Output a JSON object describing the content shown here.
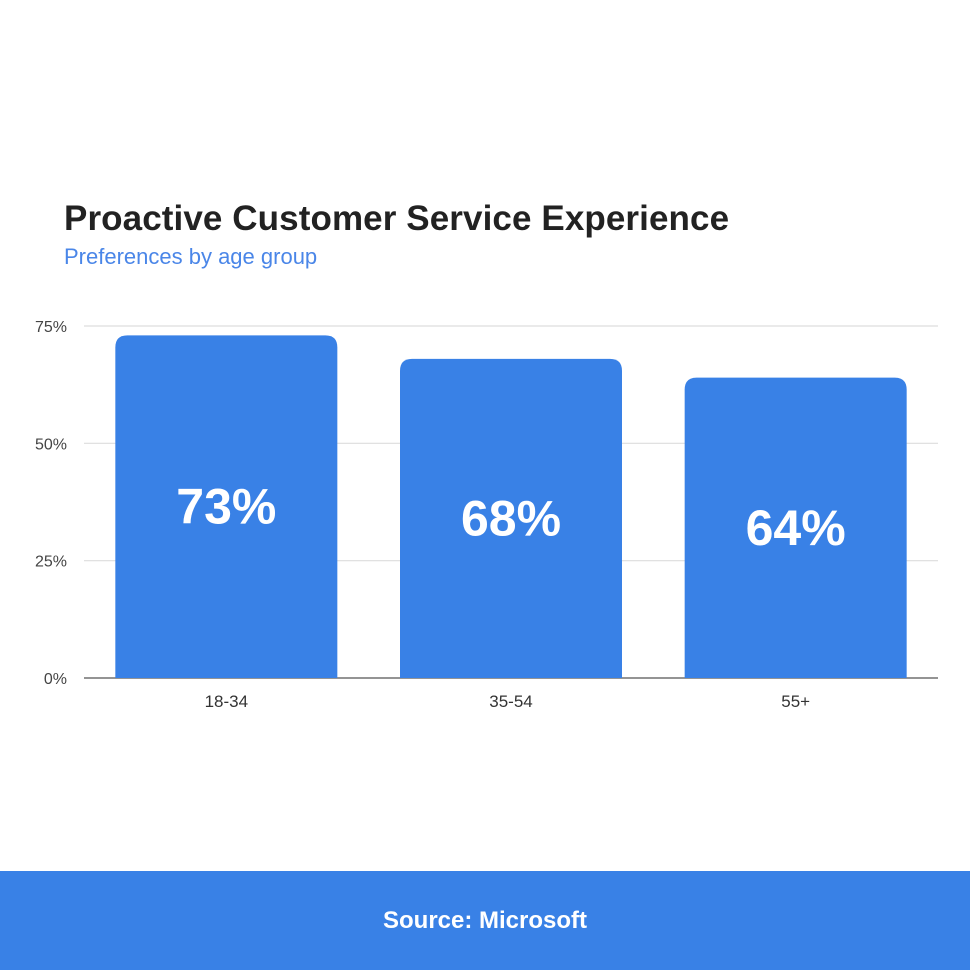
{
  "chart_data": {
    "type": "bar",
    "title": "Proactive Customer Service Experience",
    "subtitle": "Preferences by age group",
    "categories": [
      "18-34",
      "35-54",
      "55+"
    ],
    "values": [
      73,
      68,
      64
    ],
    "data_labels": [
      "73%",
      "68%",
      "64%"
    ],
    "y_ticks": [
      {
        "value": 0,
        "label": "0%"
      },
      {
        "value": 25,
        "label": "25%"
      },
      {
        "value": 50,
        "label": "50%"
      },
      {
        "value": 75,
        "label": "75%"
      }
    ],
    "ylim": [
      0,
      75
    ],
    "grid": true,
    "legend": "none",
    "bar_color": "#3981e6",
    "label_color": "#ffffff",
    "grid_color": "#dddddd",
    "title_color": "#222222",
    "subtitle_color": "#4a86e8"
  },
  "footer": {
    "source": "Source: Microsoft",
    "background": "#3981e6"
  }
}
